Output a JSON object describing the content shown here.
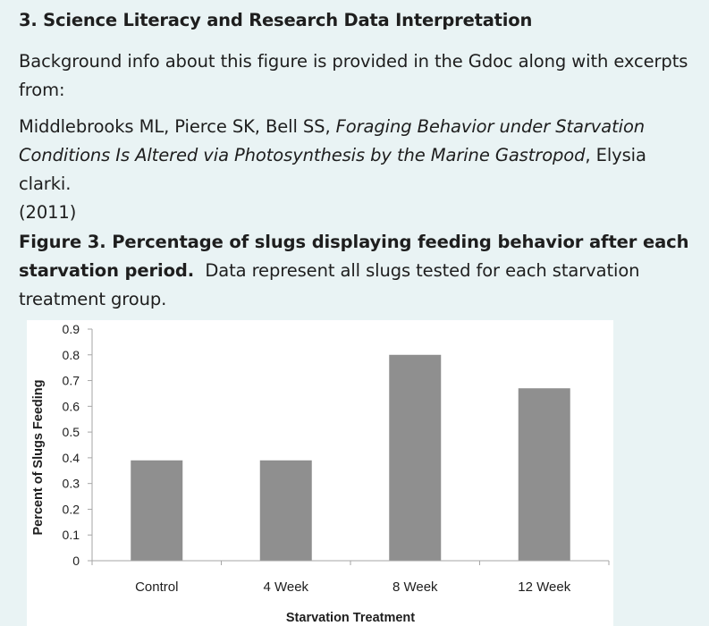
{
  "section": {
    "title": "3. Science Literacy and Research Data Interpretation"
  },
  "background": {
    "text": "Background info about this figure is provided in the Gdoc along with excerpts from:"
  },
  "citation": {
    "authors": "Middlebrooks ML, Pierce SK, Bell SS,",
    "title": "Foraging Behavior under Starvation Conditions Is Altered via Photosynthesis by the Marine Gastropod",
    "species": ", Elysia clarki.",
    "year": "(2011)"
  },
  "figure": {
    "caption_bold": "Figure 3. Percentage of slugs displaying feeding behavior after each starvation period.",
    "caption_rest": "Data represent all slugs tested for each starvation treatment group."
  },
  "colors": {
    "page_background": "#e9f3f4",
    "bar": "#8f8f8f",
    "axis": "#a6a6a6"
  },
  "chart_data": {
    "type": "bar",
    "title": "",
    "xlabel": "Starvation Treatment",
    "ylabel": "Percent of Slugs Feeding",
    "categories": [
      "Control",
      "4 Week",
      "8 Week",
      "12 Week"
    ],
    "values": [
      0.39,
      0.39,
      0.8,
      0.67
    ],
    "ylim": [
      0,
      0.9
    ],
    "yticks": [
      "0",
      "0.1",
      "0.2",
      "0.3",
      "0.4",
      "0.5",
      "0.6",
      "0.7",
      "0.8",
      "0.9"
    ],
    "grid": false,
    "legend": "none"
  }
}
